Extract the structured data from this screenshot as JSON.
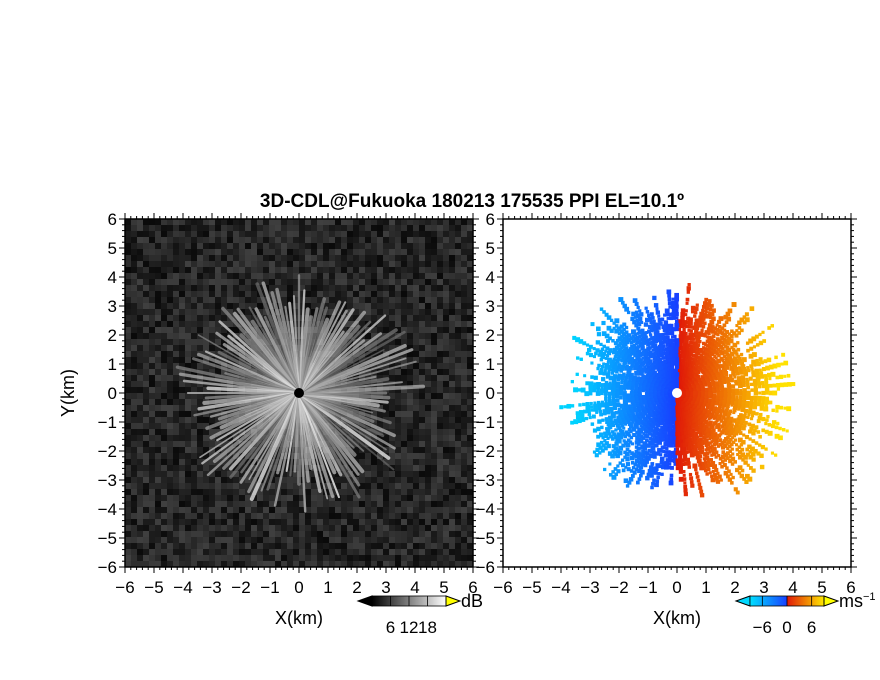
{
  "title": "3D-CDL@Fukuoka 180213 175535 PPI EL=10.1º",
  "chart_data": [
    {
      "type": "heatmap",
      "xlabel": "X(km)",
      "ylabel": "Y(km)",
      "xlim": [
        -6,
        6
      ],
      "ylim": [
        -6,
        6
      ],
      "xticks": [
        "−6",
        "−5",
        "−4",
        "−3",
        "−2",
        "−1",
        "0",
        "1",
        "2",
        "3",
        "4",
        "5",
        "6"
      ],
      "yticks": [
        "6",
        "5",
        "4",
        "3",
        "2",
        "1",
        "0",
        "−1",
        "−2",
        "−3",
        "−4",
        "−5",
        "−6"
      ],
      "colorbar": {
        "label": "dB",
        "ticks": [
          "6",
          "12",
          "18"
        ],
        "range": [
          0,
          24
        ],
        "colors": [
          "#000000",
          "#ffffff"
        ]
      },
      "pattern": "radial streaks of signal out to about 4 km radius, noise elsewhere"
    },
    {
      "type": "heatmap",
      "xlabel": "X(km)",
      "xlim": [
        -6,
        6
      ],
      "ylim": [
        -6,
        6
      ],
      "xticks": [
        "−6",
        "−5",
        "−4",
        "−3",
        "−2",
        "−1",
        "0",
        "1",
        "2",
        "3",
        "4",
        "5",
        "6"
      ],
      "yticks": [
        "6",
        "5",
        "4",
        "3",
        "2",
        "1",
        "0",
        "−1",
        "−2",
        "−3",
        "−4",
        "−5",
        "−6"
      ],
      "colorbar": {
        "label": "ms",
        "label_exp": "−1",
        "ticks": [
          "−6",
          "0",
          "6"
        ],
        "range": [
          -9,
          9
        ],
        "colors": [
          "#00d8ff",
          "#2050ff",
          "#e02010",
          "#ffe000"
        ]
      },
      "pattern": "negative velocities on x<0 (blue), positive on x>0 (red/yellow), data to about 4 km radius"
    }
  ]
}
